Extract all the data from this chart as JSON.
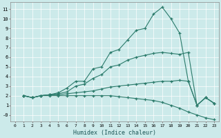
{
  "xlabel": "Humidex (Indice chaleur)",
  "bg_color": "#cceaea",
  "line_color": "#2a7a6a",
  "xlim": [
    -0.5,
    23.5
  ],
  "ylim": [
    -0.7,
    11.7
  ],
  "xticks": [
    0,
    1,
    2,
    3,
    4,
    5,
    6,
    7,
    8,
    9,
    10,
    11,
    12,
    13,
    14,
    15,
    16,
    17,
    18,
    19,
    20,
    21,
    22,
    23
  ],
  "yticks": [
    0,
    1,
    2,
    3,
    4,
    5,
    6,
    7,
    8,
    9,
    10,
    11
  ],
  "ytick_labels": [
    "-0",
    "1",
    "2",
    "3",
    "4",
    "5",
    "6",
    "7",
    "8",
    "9",
    "10",
    "11"
  ],
  "series": [
    {
      "x": [
        1,
        2,
        3,
        4,
        5,
        6,
        7,
        8,
        9,
        10,
        11,
        12,
        13,
        14,
        15,
        16,
        17,
        18,
        19,
        20,
        21,
        22,
        23
      ],
      "y": [
        2.0,
        1.8,
        2.0,
        2.1,
        2.3,
        2.8,
        3.5,
        3.5,
        4.8,
        5.0,
        6.5,
        6.8,
        7.8,
        8.8,
        9.0,
        10.5,
        11.2,
        10.0,
        8.5,
        3.5,
        1.0,
        1.8,
        1.2
      ]
    },
    {
      "x": [
        1,
        2,
        3,
        4,
        5,
        6,
        7,
        8,
        9,
        10,
        11,
        12,
        13,
        14,
        15,
        16,
        17,
        18,
        19,
        20,
        21,
        22,
        23
      ],
      "y": [
        2.0,
        1.8,
        2.0,
        2.1,
        2.2,
        2.4,
        3.0,
        3.2,
        3.8,
        4.2,
        5.0,
        5.2,
        5.7,
        6.0,
        6.2,
        6.4,
        6.5,
        6.4,
        6.3,
        6.5,
        1.0,
        1.8,
        1.2
      ]
    },
    {
      "x": [
        1,
        2,
        3,
        4,
        5,
        6,
        7,
        8,
        9,
        10,
        11,
        12,
        13,
        14,
        15,
        16,
        17,
        18,
        19,
        20,
        21,
        22,
        23
      ],
      "y": [
        2.0,
        1.8,
        2.0,
        2.1,
        2.1,
        2.2,
        2.3,
        2.4,
        2.5,
        2.7,
        2.9,
        3.0,
        3.1,
        3.2,
        3.3,
        3.4,
        3.5,
        3.5,
        3.6,
        3.5,
        1.0,
        1.8,
        1.2
      ]
    },
    {
      "x": [
        1,
        2,
        3,
        4,
        5,
        6,
        7,
        8,
        9,
        10,
        11,
        12,
        13,
        14,
        15,
        16,
        17,
        18,
        19,
        20,
        21,
        22,
        23
      ],
      "y": [
        2.0,
        1.8,
        2.0,
        2.0,
        2.0,
        2.0,
        2.0,
        2.0,
        2.0,
        2.0,
        2.0,
        1.9,
        1.8,
        1.7,
        1.6,
        1.5,
        1.3,
        1.0,
        0.7,
        0.3,
        0.0,
        -0.3,
        -0.5
      ]
    }
  ]
}
